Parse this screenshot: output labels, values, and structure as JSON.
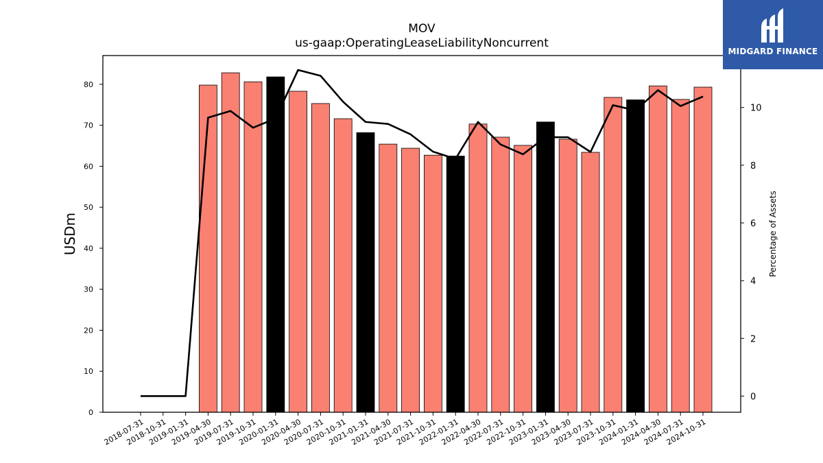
{
  "header": {
    "title": "MOV",
    "subtitle": "us-gaap:OperatingLeaseLiabilityNoncurrent"
  },
  "logo": {
    "text": "MIDGARD FINANCE",
    "color": "#2f5aa8"
  },
  "colors": {
    "bar_default": "#fa8072",
    "bar_highlight": "#000000",
    "line": "#000000"
  },
  "chart_data": {
    "type": "bar",
    "categories": [
      "2018-07-31",
      "2018-10-31",
      "2019-01-31",
      "2019-04-30",
      "2019-07-31",
      "2019-10-31",
      "2020-01-31",
      "2020-04-30",
      "2020-07-31",
      "2020-10-31",
      "2021-01-31",
      "2021-04-30",
      "2021-07-31",
      "2021-10-31",
      "2022-01-31",
      "2022-04-30",
      "2022-07-31",
      "2022-10-31",
      "2023-01-31",
      "2023-04-30",
      "2023-07-31",
      "2023-10-31",
      "2024-01-31",
      "2024-04-30",
      "2024-07-31",
      "2024-10-31"
    ],
    "series": [
      {
        "axis": "left",
        "kind": "bar",
        "values": [
          null,
          null,
          null,
          79.8,
          82.8,
          80.6,
          81.8,
          78.3,
          75.3,
          71.6,
          68.2,
          65.4,
          64.4,
          62.7,
          62.5,
          70.3,
          67.1,
          65.1,
          70.8,
          66.6,
          63.4,
          76.8,
          76.2,
          79.6,
          76.3,
          79.3
        ],
        "highlight": [
          false,
          false,
          false,
          false,
          false,
          false,
          true,
          false,
          false,
          false,
          true,
          false,
          false,
          false,
          true,
          false,
          false,
          false,
          true,
          false,
          false,
          false,
          true,
          false,
          false,
          false
        ]
      },
      {
        "axis": "right",
        "kind": "line",
        "values": [
          0,
          0,
          0,
          9.65,
          9.88,
          9.3,
          9.62,
          11.3,
          11.1,
          10.2,
          9.5,
          9.43,
          9.07,
          8.47,
          8.22,
          9.5,
          8.72,
          8.38,
          8.97,
          8.97,
          8.46,
          10.08,
          9.9,
          10.6,
          10.05,
          10.38
        ]
      }
    ],
    "ylabel": "USDm",
    "ylabel_right": "Percentage of Assets",
    "ylim": [
      0,
      87
    ],
    "yticks": [
      0,
      10,
      20,
      30,
      40,
      50,
      60,
      70,
      80
    ],
    "ylim_right": [
      -0.56,
      11.8
    ],
    "yticks_right": [
      0,
      2,
      4,
      6,
      8,
      10
    ],
    "grid": false
  }
}
